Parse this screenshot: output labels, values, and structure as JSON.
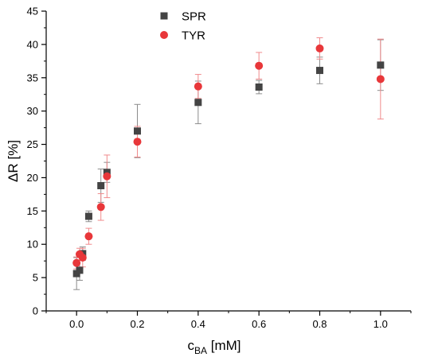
{
  "chart_data": {
    "type": "scatter",
    "xlabel": {
      "main": "c",
      "sub": "BA",
      "unit": " [mM]"
    },
    "ylabel": "ΔR [%]",
    "xlim": [
      -0.1,
      1.1
    ],
    "ylim": [
      0,
      45
    ],
    "xticks": [
      0.0,
      0.2,
      0.4,
      0.6,
      0.8,
      1.0
    ],
    "xtick_labels": [
      "0.0",
      "0.2",
      "0.4",
      "0.6",
      "0.8",
      "1.0"
    ],
    "yticks": [
      0,
      5,
      10,
      15,
      20,
      25,
      30,
      35,
      40,
      45
    ],
    "ytick_labels": [
      "0",
      "5",
      "10",
      "15",
      "20",
      "25",
      "30",
      "35",
      "40",
      "45"
    ],
    "grid": false,
    "legend_position": "top-center",
    "series": [
      {
        "name": "SPR",
        "marker": "square",
        "color": "#444444",
        "errorbar_color": "#8c8c8c",
        "points": [
          {
            "x": 0.0,
            "y": 5.6,
            "err": 2.4
          },
          {
            "x": 0.01,
            "y": 6.1,
            "err": 1.5
          },
          {
            "x": 0.02,
            "y": 8.6,
            "err": 1.0
          },
          {
            "x": 0.04,
            "y": 14.2,
            "err": 0.8
          },
          {
            "x": 0.08,
            "y": 18.8,
            "err": 2.5
          },
          {
            "x": 0.1,
            "y": 20.8,
            "err": 1.5
          },
          {
            "x": 0.2,
            "y": 27.0,
            "err": 4.0
          },
          {
            "x": 0.4,
            "y": 31.3,
            "err": 3.2
          },
          {
            "x": 0.6,
            "y": 33.6,
            "err": 1.0
          },
          {
            "x": 0.8,
            "y": 36.1,
            "err": 2.0
          },
          {
            "x": 1.0,
            "y": 36.9,
            "err": 3.8
          }
        ]
      },
      {
        "name": "TYR",
        "marker": "circle",
        "color": "#e8373a",
        "errorbar_color": "#f08a8c",
        "points": [
          {
            "x": 0.0,
            "y": 7.2,
            "err": 0.9
          },
          {
            "x": 0.01,
            "y": 8.5,
            "err": 0.9
          },
          {
            "x": 0.02,
            "y": 8.0,
            "err": 1.4
          },
          {
            "x": 0.04,
            "y": 11.2,
            "err": 1.2
          },
          {
            "x": 0.08,
            "y": 15.6,
            "err": 2.0
          },
          {
            "x": 0.1,
            "y": 20.2,
            "err": 3.2
          },
          {
            "x": 0.2,
            "y": 25.4,
            "err": 2.3
          },
          {
            "x": 0.4,
            "y": 33.7,
            "err": 1.8
          },
          {
            "x": 0.6,
            "y": 36.8,
            "err": 2.0
          },
          {
            "x": 0.8,
            "y": 39.4,
            "err": 1.6
          },
          {
            "x": 1.0,
            "y": 34.8,
            "err": 6.0
          }
        ]
      }
    ]
  }
}
